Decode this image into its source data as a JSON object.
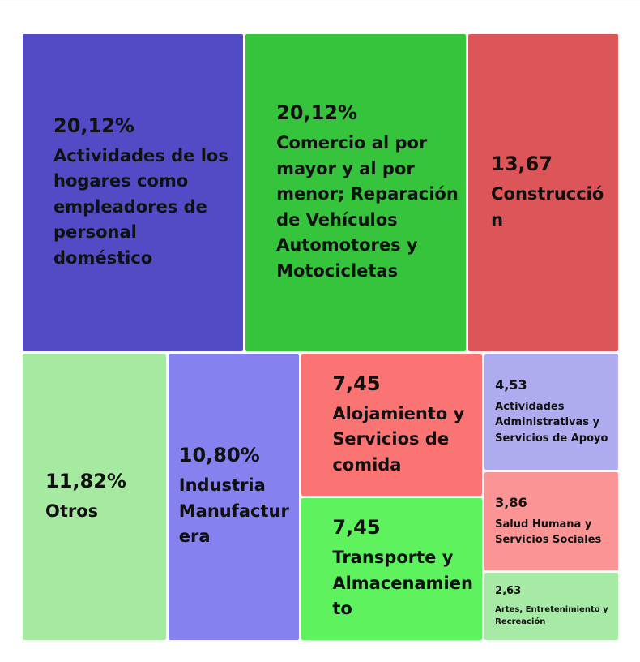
{
  "chart_data": {
    "type": "treemap",
    "categories": [
      "Actividades de los hogares como empleadores de personal doméstico",
      "Comercio al por mayor y al por menor; Reparación de Vehículos Automotores y Motocicletas",
      "Construcción",
      "Otros",
      "Industria Manufacturera",
      "Alojamiento y Servicios de comida",
      "Transporte y Almacenamiento",
      "Actividades Administrativas y Servicios de Apoyo",
      "Salud Humana y Servicios Sociales",
      "Artes, Entretenimiento y Recreación"
    ],
    "values": [
      20.12,
      20.12,
      13.67,
      11.82,
      10.8,
      7.45,
      7.45,
      4.53,
      3.86,
      2.63
    ],
    "value_labels": [
      "20,12%",
      "20,12%",
      "13,67",
      "11,82%",
      "10,80%",
      "7,45",
      "7,45",
      "4,53",
      "3,86",
      "2,63"
    ],
    "colors": [
      "#534bc6",
      "#37c43d",
      "#dc5558",
      "#a6eaa1",
      "#8581ee",
      "#fb7474",
      "#5ef35e",
      "#afabef",
      "#fb9595",
      "#a7eaa6"
    ]
  }
}
